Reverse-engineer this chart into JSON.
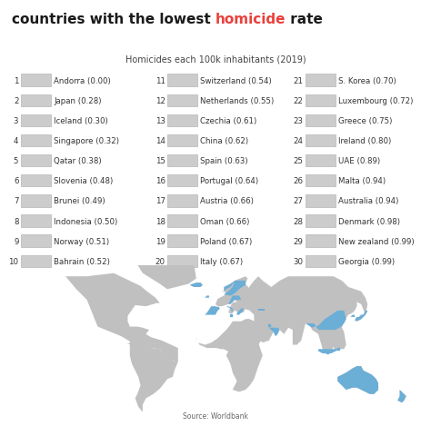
{
  "title_black1": "countries with the lowest ",
  "title_red": "homicide",
  "title_black2": " rate",
  "subtitle": "Homicides each 100k inhabitants (2019)",
  "bg_color": "#ffffff",
  "title_fontsize": 11,
  "subtitle_fontsize": 7,
  "item_fontsize": 6.2,
  "title_color": "#1a1a1a",
  "red_color": "#e8413c",
  "subtitle_color": "#444444",
  "item_color": "#333333",
  "source_text": "Source: Worldbank",
  "countries": [
    {
      "rank": 1,
      "name": "Andorra",
      "value": "0.00"
    },
    {
      "rank": 2,
      "name": "Japan",
      "value": "0.28"
    },
    {
      "rank": 3,
      "name": "Iceland",
      "value": "0.30"
    },
    {
      "rank": 4,
      "name": "Singapore",
      "value": "0.32"
    },
    {
      "rank": 5,
      "name": "Qatar",
      "value": "0.38"
    },
    {
      "rank": 6,
      "name": "Slovenia",
      "value": "0.48"
    },
    {
      "rank": 7,
      "name": "Brunei",
      "value": "0.49"
    },
    {
      "rank": 8,
      "name": "Indonesia",
      "value": "0.50"
    },
    {
      "rank": 9,
      "name": "Norway",
      "value": "0.51"
    },
    {
      "rank": 10,
      "name": "Bahrain",
      "value": "0.52"
    },
    {
      "rank": 11,
      "name": "Switzerland",
      "value": "0.54"
    },
    {
      "rank": 12,
      "name": "Netherlands",
      "value": "0.55"
    },
    {
      "rank": 13,
      "name": "Czechia",
      "value": "0.61"
    },
    {
      "rank": 14,
      "name": "China",
      "value": "0.62"
    },
    {
      "rank": 15,
      "name": "Spain",
      "value": "0.63"
    },
    {
      "rank": 16,
      "name": "Portugal",
      "value": "0.64"
    },
    {
      "rank": 17,
      "name": "Austria",
      "value": "0.66"
    },
    {
      "rank": 18,
      "name": "Oman",
      "value": "0.66"
    },
    {
      "rank": 19,
      "name": "Poland",
      "value": "0.67"
    },
    {
      "rank": 20,
      "name": "Italy",
      "value": "0.67"
    },
    {
      "rank": 21,
      "name": "S. Korea",
      "value": "0.70"
    },
    {
      "rank": 22,
      "name": "Luxembourg",
      "value": "0.72"
    },
    {
      "rank": 23,
      "name": "Greece",
      "value": "0.75"
    },
    {
      "rank": 24,
      "name": "Ireland",
      "value": "0.80"
    },
    {
      "rank": 25,
      "name": "UAE",
      "value": "0.89"
    },
    {
      "rank": 26,
      "name": "Malta",
      "value": "0.94"
    },
    {
      "rank": 27,
      "name": "Australia",
      "value": "0.94"
    },
    {
      "rank": 28,
      "name": "Denmark",
      "value": "0.98"
    },
    {
      "rank": 29,
      "name": "New zealand",
      "value": "0.99"
    },
    {
      "rank": 30,
      "name": "Georgia",
      "value": "0.99"
    }
  ],
  "map_highlight_color": "#6baed6",
  "map_land_color": "#c0c0c0",
  "map_water_color": "#ffffff",
  "flag_color": "#cccccc",
  "flag_edge_color": "#aaaaaa"
}
